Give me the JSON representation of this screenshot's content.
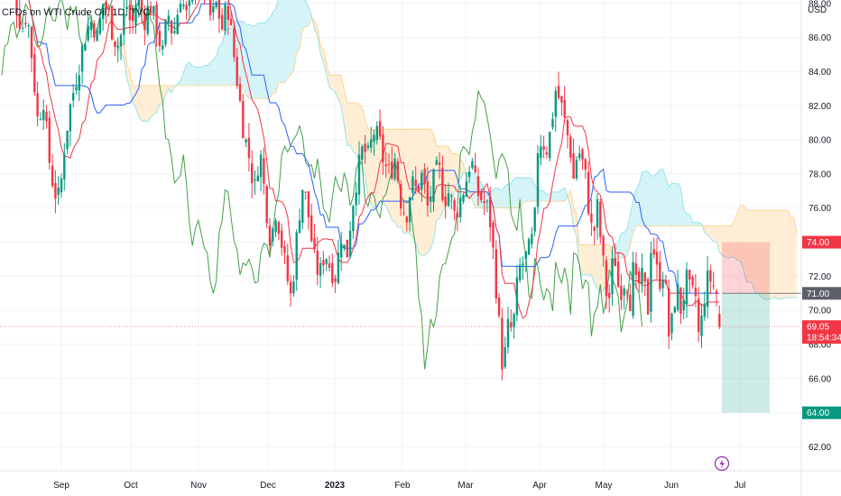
{
  "title": "CFDs on WTI Crude Oil, 1D, TVC",
  "currency": "USD",
  "chart_data": {
    "type": "candlestick",
    "y_range": [
      60.6,
      88.2
    ],
    "y_ticks": [
      "62.00",
      "64.00",
      "66.00",
      "68.00",
      "70.00",
      "72.00",
      "74.00",
      "76.00",
      "78.00",
      "80.00",
      "82.00",
      "84.00",
      "86.00",
      "88.00"
    ],
    "x_months": [
      "Sep",
      "Oct",
      "Nov",
      "Dec",
      "2023",
      "Feb",
      "Mar",
      "Apr",
      "May",
      "Jun",
      "Jul"
    ],
    "price_labels": [
      {
        "label": "74.00",
        "value": 74.0,
        "color": "#f23645"
      },
      {
        "label": "71.00",
        "value": 71.0,
        "color": "#5d606b"
      },
      {
        "label": "69.05",
        "sub": "18:54:34",
        "value": 69.05,
        "color": "#f23645"
      },
      {
        "label": "64.00",
        "value": 64.0,
        "color": "#089981"
      }
    ],
    "last_price": 69.05,
    "position": {
      "entry": 71.0,
      "stop": 74.0,
      "target": 64.0
    },
    "colors": {
      "up": "#089981",
      "down": "#f23645",
      "conversion": "#2962ff",
      "base": "#f23645",
      "lagging": "#43a047",
      "cloud_bull": "#b2ebf2",
      "cloud_bear": "#ffe0b2"
    },
    "legend_icon": "lightning-icon"
  }
}
